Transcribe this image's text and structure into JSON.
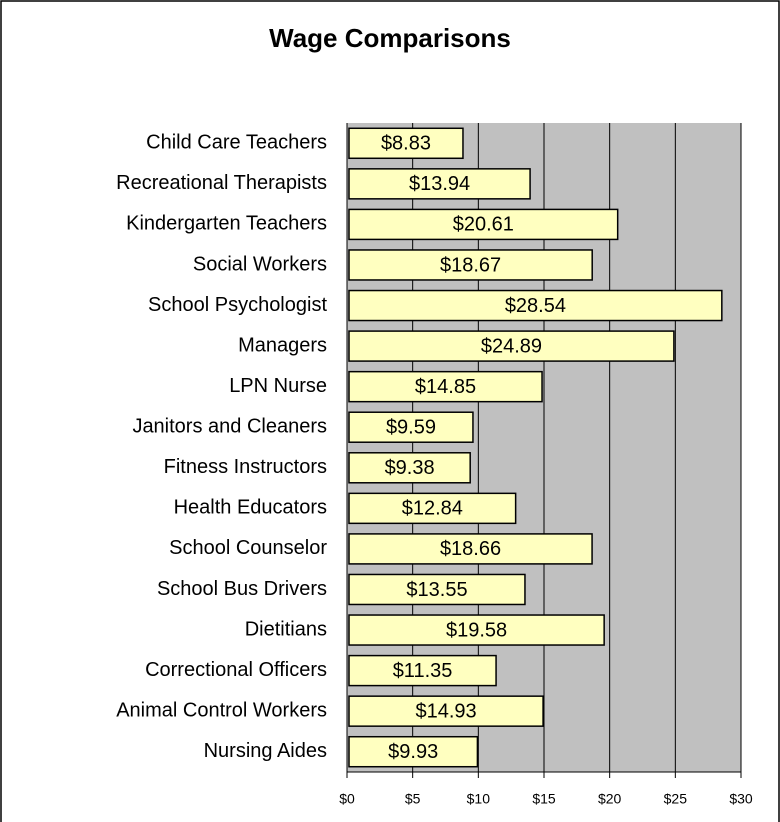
{
  "chart_data": {
    "type": "bar",
    "orientation": "horizontal",
    "title": "Wage Comparisons",
    "categories": [
      "Child Care Teachers",
      "Recreational Therapists",
      "Kindergarten Teachers",
      "Social Workers",
      "School Psychologist",
      "Managers",
      "LPN Nurse",
      "Janitors and Cleaners",
      "Fitness Instructors",
      "Health Educators",
      "School Counselor",
      "School Bus Drivers",
      "Dietitians",
      "Correctional Officers",
      "Animal Control Workers",
      "Nursing Aides"
    ],
    "values": [
      8.83,
      13.94,
      20.61,
      18.67,
      28.54,
      24.89,
      14.85,
      9.59,
      9.38,
      12.84,
      18.66,
      13.55,
      19.58,
      11.35,
      14.93,
      9.93
    ],
    "value_labels": [
      "$8.83",
      "$13.94",
      "$20.61",
      "$18.67",
      "$28.54",
      "$24.89",
      "$14.85",
      "$9.59",
      "$9.38",
      "$12.84",
      "$18.66",
      "$13.55",
      "$19.58",
      "$11.35",
      "$14.93",
      "$9.93"
    ],
    "color": "#ffffc0",
    "xlim": [
      0,
      30
    ],
    "xticks": [
      {
        "value": 0,
        "label": "$0"
      },
      {
        "value": 5,
        "label": "$5"
      },
      {
        "value": 10,
        "label": "$10"
      },
      {
        "value": 15,
        "label": "$15"
      },
      {
        "value": 20,
        "label": "$20"
      },
      {
        "value": 25,
        "label": "$25"
      },
      {
        "value": 30,
        "label": "$30"
      }
    ],
    "grid": true
  }
}
